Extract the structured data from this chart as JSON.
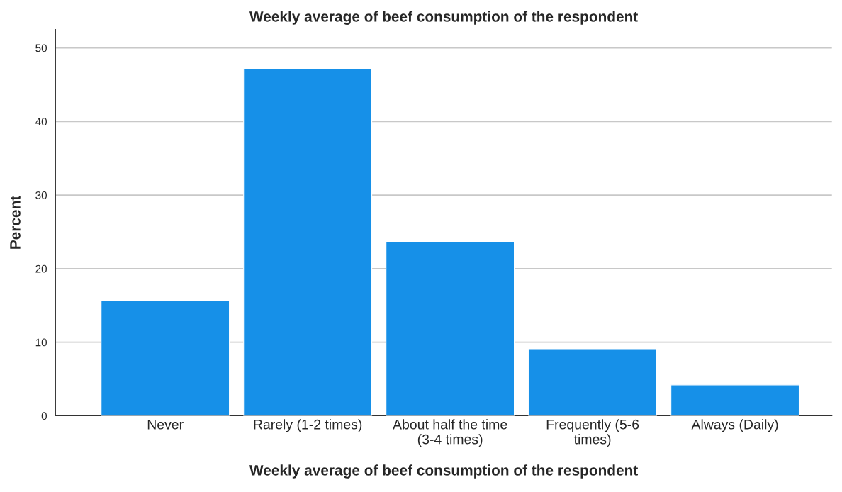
{
  "chart_data": {
    "type": "bar",
    "title": "Weekly average of beef consumption of the respondent",
    "xlabel": "Weekly average of beef consumption of the respondent",
    "ylabel": "Percent",
    "categories": [
      "Never",
      "Rarely (1-2 times)",
      "About half the time\n(3-4 times)",
      "Frequently (5-6\ntimes)",
      "Always (Daily)"
    ],
    "values": [
      15.7,
      47.2,
      23.6,
      9.1,
      4.2
    ],
    "color": "#1690e8",
    "ylim": [
      0,
      52.5
    ],
    "yticks": [
      0,
      10,
      20,
      30,
      40,
      50
    ],
    "grid": "y",
    "legend": false
  }
}
